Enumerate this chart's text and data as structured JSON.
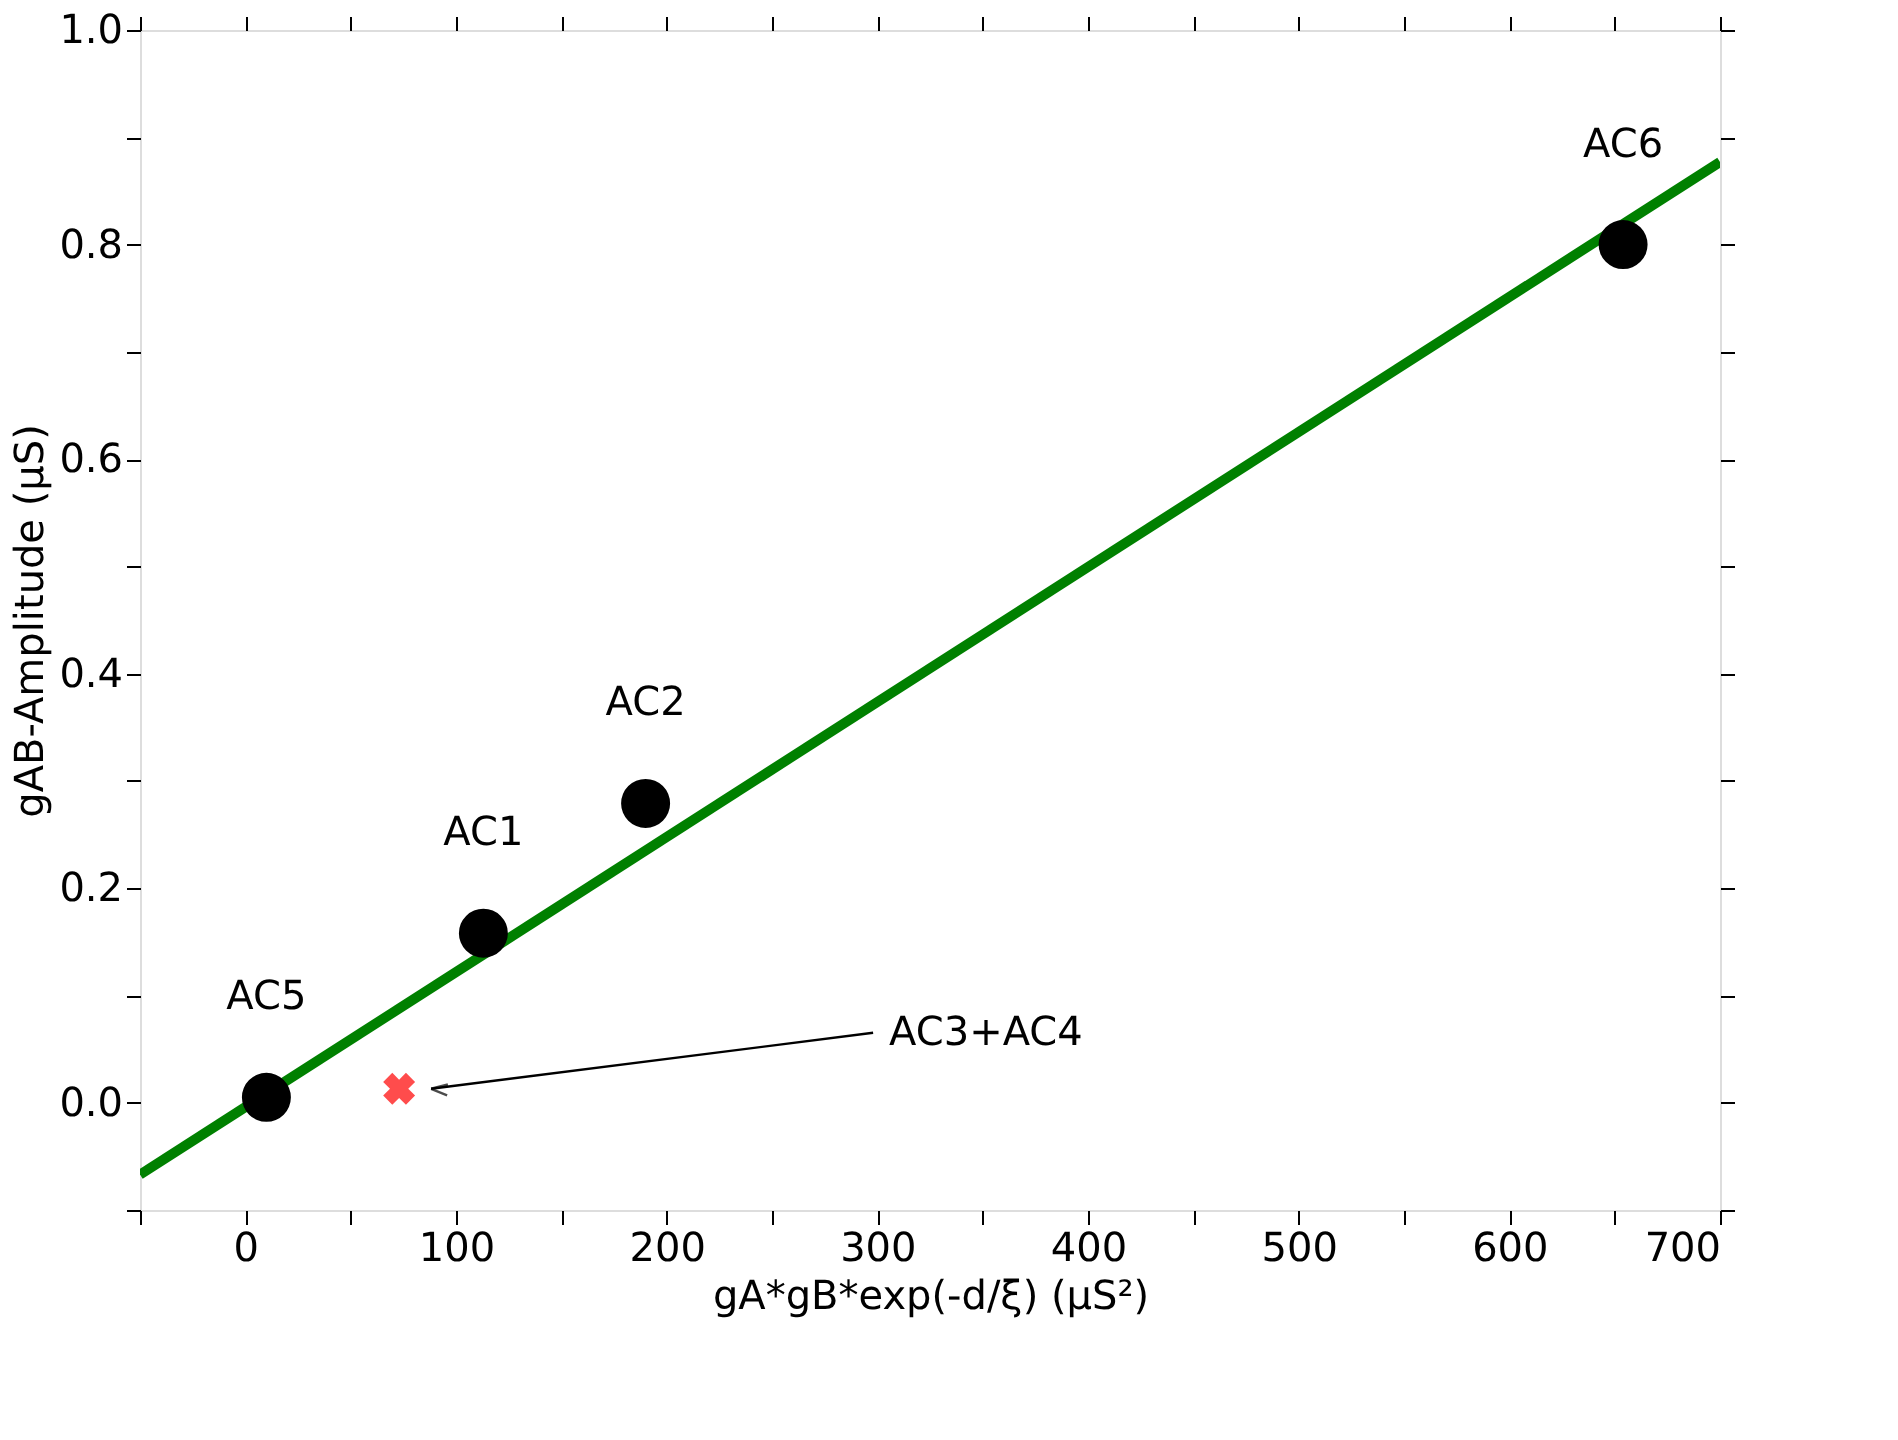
{
  "chart_data": {
    "type": "scatter",
    "xlabel": "gA*gB*exp(-d/ξ) (µS²)",
    "ylabel": "gAB-Amplitude (µS)",
    "xlim": [
      -50,
      700
    ],
    "ylim": [
      -0.1,
      1.0
    ],
    "xticks": [
      {
        "value": -50,
        "label": null
      },
      0,
      {
        "value": 50,
        "label": null
      },
      100,
      {
        "value": 150,
        "label": null
      },
      200,
      {
        "value": 250,
        "label": null
      },
      300,
      {
        "value": 350,
        "label": null
      },
      400,
      {
        "value": 450,
        "label": null
      },
      500,
      {
        "value": 550,
        "label": null
      },
      600,
      {
        "value": 650,
        "label": null
      },
      700
    ],
    "yticks": [
      {
        "value": -0.1,
        "label": null
      },
      {
        "value": 0,
        "label": "0.0"
      },
      {
        "value": 0.1,
        "label": null
      },
      0.2,
      {
        "value": 0.3,
        "label": null
      },
      0.4,
      {
        "value": 0.5,
        "label": null
      },
      0.6,
      {
        "value": 0.7,
        "label": null
      },
      0.8,
      {
        "value": 0.9,
        "label": null
      },
      {
        "value": 1.0,
        "label": "1.0"
      }
    ],
    "grid": false,
    "series": [
      {
        "type": "line",
        "color": "#008000",
        "x": [
          -50,
          700
        ],
        "values": [
          -0.067,
          0.877
        ],
        "marker": "none",
        "line_style": "solid"
      },
      {
        "type": "scatter",
        "color": "#000000",
        "x": [
          10,
          113,
          190,
          654
        ],
        "values": [
          0.005,
          0.158,
          0.279,
          0.8
        ],
        "marker": "circle"
      },
      {
        "type": "scatter",
        "color": "#ff0000",
        "x": [
          73
        ],
        "values": [
          0.013
        ],
        "marker": "cross"
      }
    ],
    "annotations": [
      {
        "text": "AC5",
        "x": 10,
        "y": 0.005
      },
      {
        "text": "AC1",
        "x": 113,
        "y": 0.158
      },
      {
        "text": "AC2",
        "x": 190,
        "y": 0.279
      },
      {
        "text": "AC6",
        "x": 654,
        "y": 0.8
      },
      "AC3+AC4"
    ]
  }
}
